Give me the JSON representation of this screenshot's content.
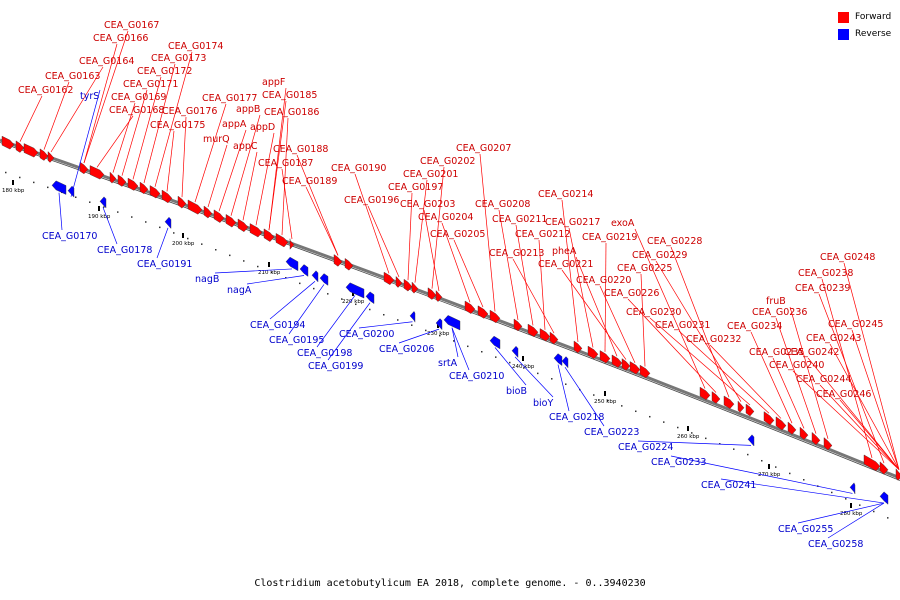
{
  "caption": "Clostridium acetobutylicum EA 2018, complete genome. - 0..3940230",
  "legend": [
    {
      "label": "Forward",
      "color": "#ff0000"
    },
    {
      "label": "Reverse",
      "color": "#0000ff"
    }
  ],
  "colors": {
    "forward": "#ff0000",
    "reverse": "#0000ff",
    "backbone": "#777777"
  },
  "ticks": [
    "180 kbp",
    "190 kbp",
    "200 kbp",
    "210 kbp",
    "220 kbp",
    "230 kbp",
    "240 kbp",
    "250 kbp",
    "260 kbp",
    "270 kbp",
    "280 kbp"
  ],
  "forward_labels": [
    "CEA_G0162",
    "CEA_G0163",
    "CEA_G0164",
    "CEA_G0166",
    "CEA_G0167",
    "CEA_G0168",
    "CEA_G0169",
    "CEA_G0171",
    "CEA_G0172",
    "CEA_G0173",
    "CEA_G0174",
    "CEA_G0175",
    "CEA_G0176",
    "CEA_G0177",
    "murQ",
    "appA",
    "appB",
    "appC",
    "appD",
    "appF",
    "CEA_G0185",
    "CEA_G0186",
    "CEA_G0187",
    "CEA_G0188",
    "CEA_G0189",
    "CEA_G0190",
    "CEA_G0196",
    "CEA_G0197",
    "CEA_G0201",
    "CEA_G0202",
    "CEA_G0203",
    "CEA_G0204",
    "CEA_G0205",
    "CEA_G0207",
    "CEA_G0208",
    "CEA_G0211",
    "CEA_G0212",
    "CEA_G0213",
    "CEA_G0214",
    "CEA_G0217",
    "CEA_G0219",
    "pheA",
    "CEA_G0221",
    "CEA_G0220",
    "CEA_G0225",
    "exoA",
    "CEA_G0226",
    "CEA_G0228",
    "CEA_G0229",
    "CEA_G0230",
    "CEA_G0231",
    "CEA_G0232",
    "CEA_G0234",
    "CEA_G0235",
    "CEA_G0236",
    "fruB",
    "CEA_G0238",
    "CEA_G0239",
    "CEA_G0240",
    "CEA_G0242",
    "CEA_G0243",
    "CEA_G0244",
    "CEA_G0245",
    "CEA_G0246",
    "CEA_G0248"
  ],
  "reverse_labels": [
    "tyrS",
    "CEA_G0170",
    "CEA_G0178",
    "CEA_G0191",
    "nagB",
    "nagA",
    "CEA_G0194",
    "CEA_G0195",
    "CEA_G0198",
    "CEA_G0199",
    "CEA_G0200",
    "CEA_G0206",
    "srtA",
    "CEA_G0210",
    "bioB",
    "bioY",
    "CEA_G0218",
    "CEA_G0223",
    "CEA_G0224",
    "CEA_G0233",
    "CEA_G0241",
    "CEA_G0255",
    "CEA_G0258"
  ]
}
